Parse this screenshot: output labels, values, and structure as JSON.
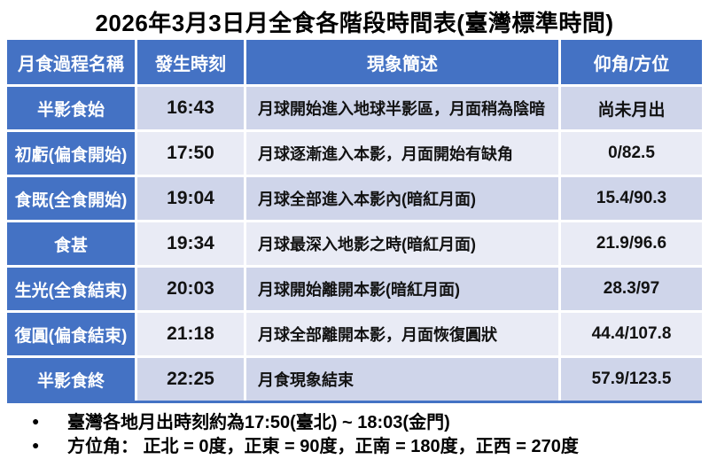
{
  "title": "2026年3月3日月全食各階段時間表(臺灣標準時間)",
  "colors": {
    "accent_blue": "#4472C4",
    "band_dark": "#CFD5EA",
    "band_light": "#E9EBF5",
    "header_text": "#FFFFFF",
    "body_text": "#121212"
  },
  "table": {
    "headers": [
      "月食過程名稱",
      "發生時刻",
      "現象簡述",
      "仰角/方位"
    ],
    "rows": [
      {
        "name": "半影食始",
        "time": "16:43",
        "desc": "月球開始進入地球半影區，月面稍為陰暗",
        "angle": "尚未月出"
      },
      {
        "name": "初虧(偏食開始)",
        "time": "17:50",
        "desc": "月球逐漸進入本影，月面開始有缺角",
        "angle": "0/82.5"
      },
      {
        "name": "食既(全食開始)",
        "time": "19:04",
        "desc": "月球全部進入本影內(暗紅月面)",
        "angle": "15.4/90.3"
      },
      {
        "name": "食甚",
        "time": "19:34",
        "desc": "月球最深入地影之時(暗紅月面)",
        "angle": "21.9/96.6"
      },
      {
        "name": "生光(全食結束)",
        "time": "20:03",
        "desc": "月球開始離開本影(暗紅月面)",
        "angle": "28.3/97"
      },
      {
        "name": "復圓(偏食結束)",
        "time": "21:18",
        "desc": "月球全部離開本影，月面恢復圓狀",
        "angle": "44.4/107.8"
      },
      {
        "name": "半影食終",
        "time": "22:25",
        "desc": "月食現象結束",
        "angle": "57.9/123.5"
      }
    ]
  },
  "footer": {
    "bullet": "●",
    "notes": [
      "臺灣各地月出時刻約為17:50(臺北) ~ 18:03(金門)",
      "方位角： 正北 = 0度，正東 = 90度，正南 = 180度，正西 = 270度"
    ]
  }
}
